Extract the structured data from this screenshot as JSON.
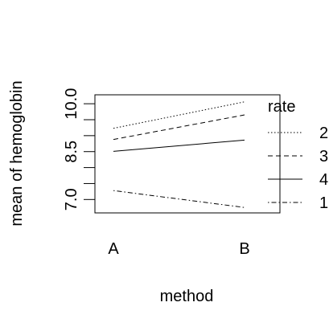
{
  "chart_data": {
    "type": "line",
    "title": "",
    "xlabel": "method",
    "ylabel": "mean of  hemoglobin",
    "categories": [
      "A",
      "B"
    ],
    "yticks": [
      "7.0",
      "8.5",
      "10.0"
    ],
    "ylim": [
      6.58,
      10.28
    ],
    "grid": false,
    "legend": {
      "title": "rate",
      "placement": "right"
    },
    "series": [
      {
        "name": "2",
        "values": [
          9.23,
          10.06
        ],
        "dash": "dotted"
      },
      {
        "name": "3",
        "values": [
          8.88,
          9.65
        ],
        "dash": "dashed"
      },
      {
        "name": "4",
        "values": [
          8.51,
          8.86
        ],
        "dash": "solid"
      },
      {
        "name": "1",
        "values": [
          7.28,
          6.75
        ],
        "dash": "dotdash"
      }
    ],
    "colors": {
      "line": "#000000",
      "background": "#ffffff"
    }
  }
}
